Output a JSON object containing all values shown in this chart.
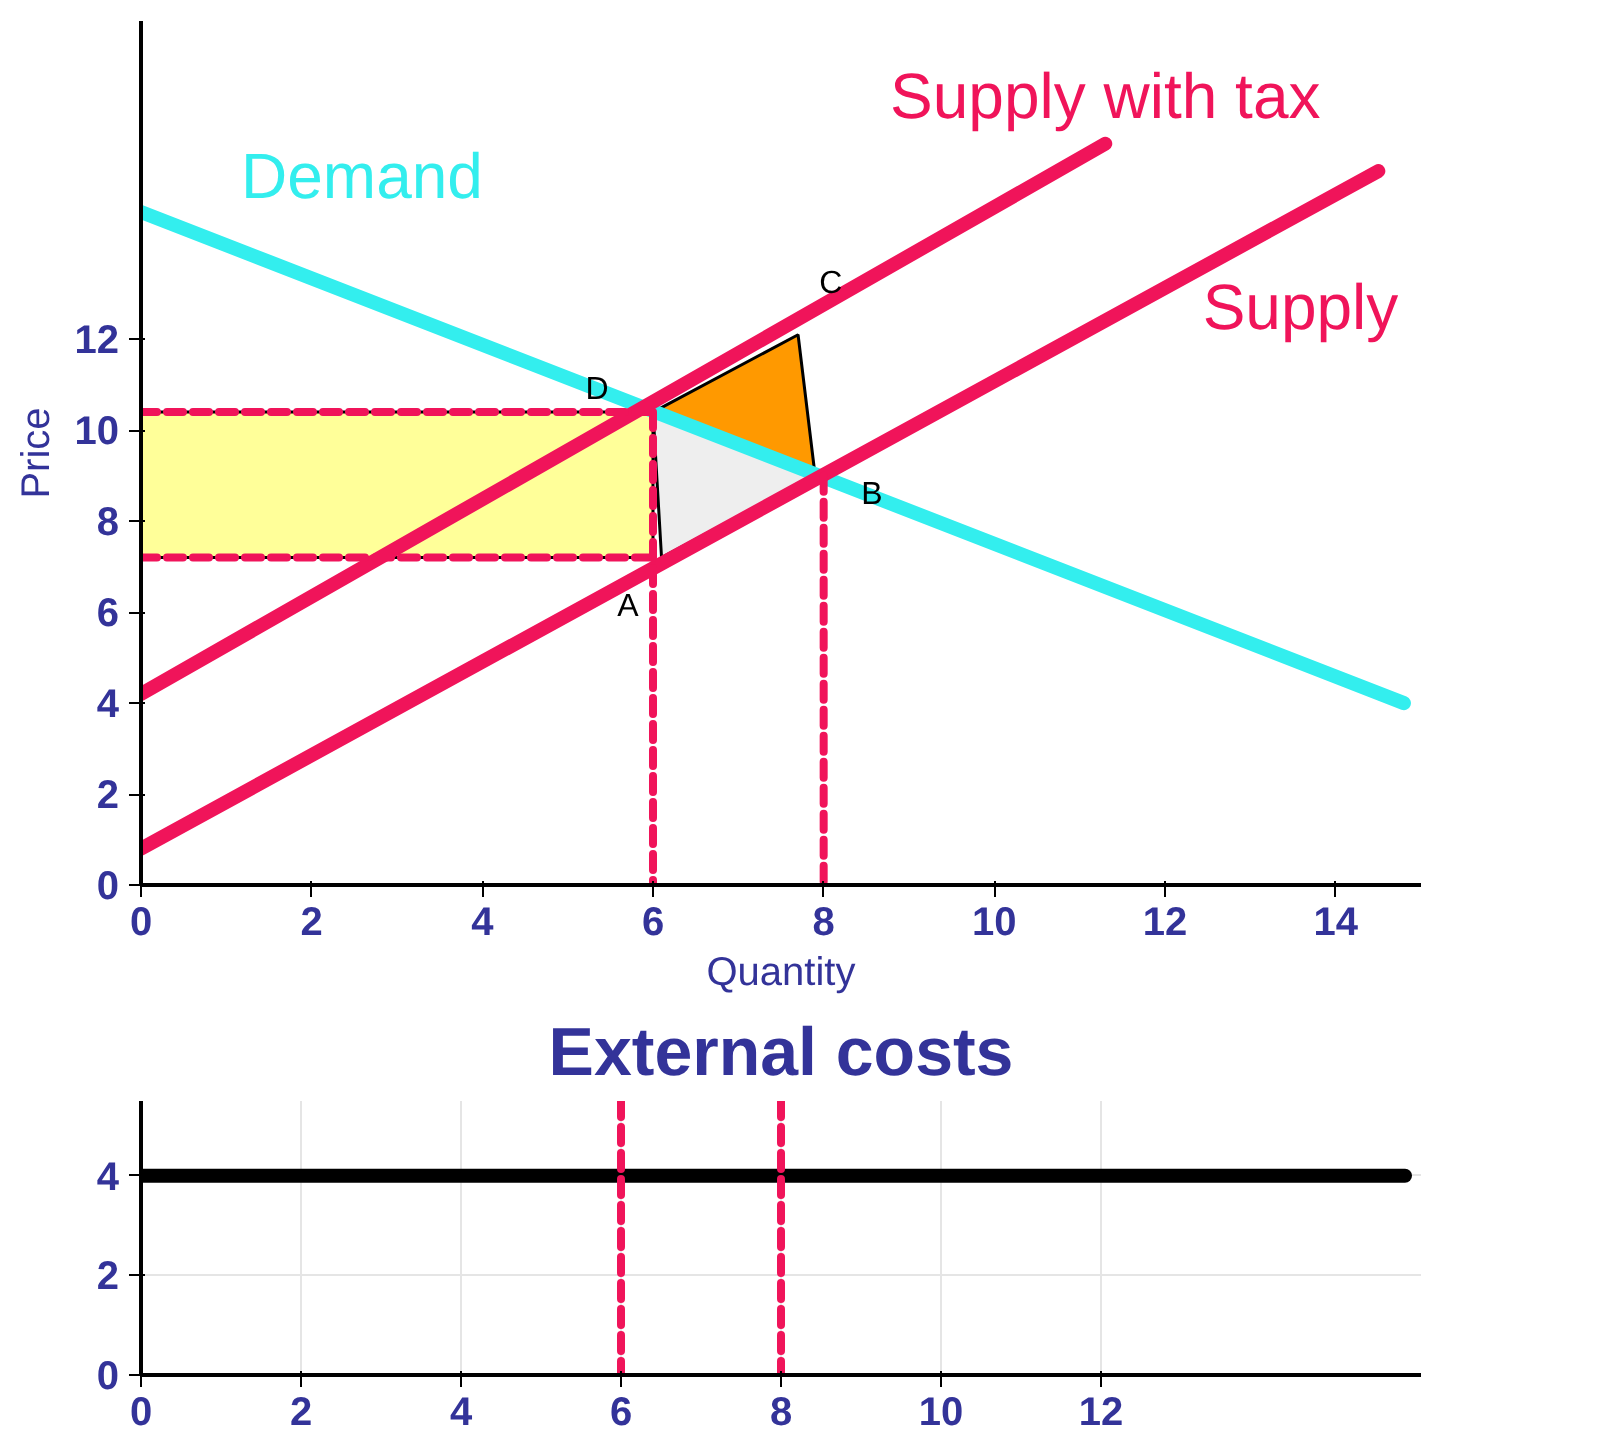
{
  "chart_data": [
    {
      "type": "line",
      "xlabel": "Quantity",
      "ylabel": "Price",
      "xlim": [
        0,
        15
      ],
      "ylim": [
        0,
        19
      ],
      "xticks": [
        0,
        2,
        4,
        6,
        8,
        10,
        12,
        14
      ],
      "yticks": [
        0,
        2,
        4,
        6,
        8,
        10,
        12
      ],
      "grid": false,
      "series": [
        {
          "type": "area",
          "color": "#ffff99",
          "x": [
            0,
            6,
            6,
            0
          ],
          "values": [
            10.4,
            10.4,
            7.2,
            7.2
          ]
        },
        {
          "type": "area",
          "color": "#ff9900",
          "x": [
            6,
            7.7,
            7.9
          ],
          "values": [
            10.4,
            12.1,
            9.0
          ]
        },
        {
          "type": "area",
          "color": "#eeeeee",
          "x": [
            6,
            7.9,
            6.1
          ],
          "values": [
            10.4,
            9.0,
            7.2
          ]
        },
        {
          "name": "Demand",
          "color": "#33eeee",
          "x": [
            0,
            14.8
          ],
          "values": [
            14.8,
            4.0
          ]
        },
        {
          "name": "Supply with tax",
          "color": "#f0145a",
          "x": [
            0,
            11.3
          ],
          "values": [
            4.2,
            16.3
          ]
        },
        {
          "name": "Supply",
          "color": "#f0145a",
          "x": [
            0,
            14.5
          ],
          "values": [
            0.8,
            15.7
          ]
        },
        {
          "line_style": "dashed",
          "color": "#f0145a",
          "x": [
            0,
            6
          ],
          "values": [
            10.4,
            10.4
          ]
        },
        {
          "line_style": "dashed",
          "color": "#f0145a",
          "x": [
            0,
            6
          ],
          "values": [
            7.2,
            7.2
          ]
        },
        {
          "line_style": "dashed",
          "color": "#f0145a",
          "x": [
            6,
            6
          ],
          "values": [
            10.4,
            0
          ]
        },
        {
          "line_style": "dashed",
          "color": "#f0145a",
          "x": [
            8,
            8
          ],
          "values": [
            9.0,
            0
          ]
        }
      ],
      "annotations": [
        {
          "text": "A",
          "x": 6.1,
          "y": 7.2
        },
        {
          "text": "B",
          "x": 7.9,
          "y": 9.0
        },
        {
          "text": "C",
          "x": 7.7,
          "y": 12.1
        },
        {
          "text": "D",
          "x": 6,
          "y": 10.4
        }
      ]
    },
    {
      "type": "line",
      "title": "External costs",
      "xlim": [
        0,
        16
      ],
      "ylim": [
        0,
        5.5
      ],
      "xticks": [
        0,
        2,
        4,
        6,
        8,
        10,
        12
      ],
      "yticks": [
        0,
        2,
        4
      ],
      "grid": true,
      "series": [
        {
          "color": "#000000",
          "x": [
            0,
            15.8
          ],
          "values": [
            4,
            4
          ]
        },
        {
          "line_style": "dashed",
          "color": "#f0145a",
          "x": [
            6,
            6
          ],
          "values": [
            5.5,
            0
          ]
        },
        {
          "line_style": "dashed",
          "color": "#f0145a",
          "x": [
            8,
            8
          ],
          "values": [
            5.5,
            0
          ]
        }
      ]
    }
  ]
}
